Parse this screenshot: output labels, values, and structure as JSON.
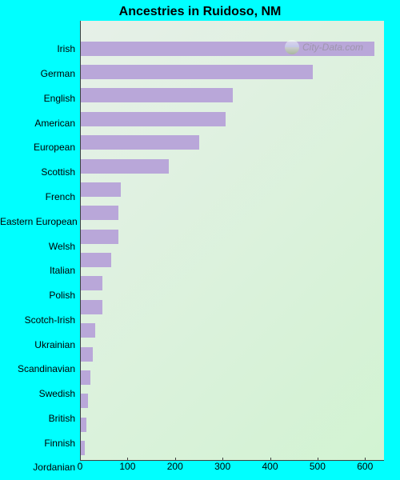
{
  "chart": {
    "type": "bar-horizontal",
    "title": "Ancestries in Ruidoso, NM",
    "title_fontsize": 16,
    "title_color": "#000000",
    "background_color": "#00ffff",
    "plot_gradient_start": "#e6f0e8",
    "plot_gradient_end": "#d2f3d2",
    "axis_color": "#404040",
    "tick_color": "#404040",
    "label_color": "#000000",
    "label_fontsize": 12,
    "bar_color": "#b9a7d9",
    "bar_height_ratio": 0.8,
    "xlim": [
      0,
      640
    ],
    "xtick_step": 100,
    "xticks": [
      0,
      100,
      200,
      300,
      400,
      500,
      600
    ],
    "categories": [
      "Irish",
      "German",
      "English",
      "American",
      "European",
      "Scottish",
      "French",
      "Eastern European",
      "Welsh",
      "Italian",
      "Polish",
      "Scotch-Irish",
      "Ukrainian",
      "Scandinavian",
      "Swedish",
      "British",
      "Finnish",
      "Jordanian"
    ],
    "values": [
      620,
      490,
      320,
      305,
      250,
      185,
      85,
      80,
      80,
      65,
      45,
      45,
      30,
      25,
      20,
      15,
      12,
      8
    ]
  },
  "watermark": {
    "text": "City-Data.com",
    "text_color": "#888888",
    "fontsize": 12
  }
}
